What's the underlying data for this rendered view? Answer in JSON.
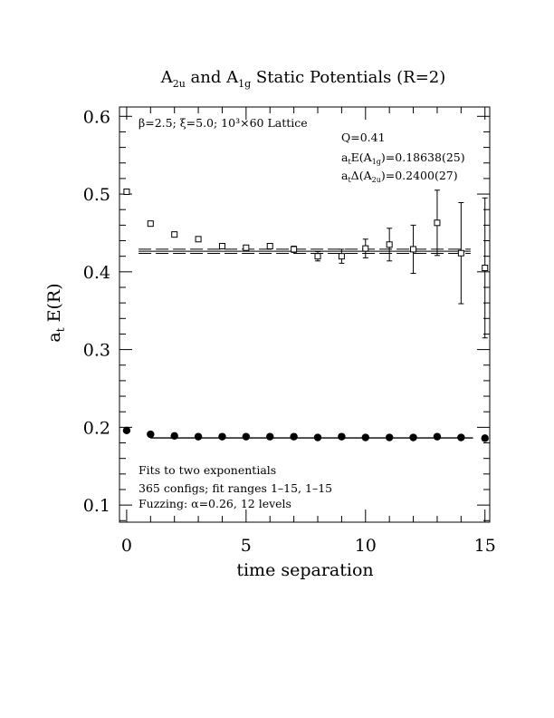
{
  "chart_data": {
    "type": "scatter",
    "title": {
      "prefix": "A",
      "sub1": "2u",
      "mid": " and A",
      "sub2": "1g",
      "suffix": " Static Potentials (R=2)"
    },
    "xlabel": "time separation",
    "ylabel": {
      "main": "a",
      "sub": "t",
      "rest": " E(R)"
    },
    "xlim": [
      -0.3,
      15.2
    ],
    "ylim": [
      0.078,
      0.612
    ],
    "xticks": [
      0,
      5,
      10,
      15
    ],
    "xtick_labels": [
      "0",
      "5",
      "10",
      "15"
    ],
    "yticks": [
      0.1,
      0.2,
      0.3,
      0.4,
      0.5,
      0.6
    ],
    "ytick_labels": [
      "0.1",
      "0.2",
      "0.3",
      "0.4",
      "0.5",
      "0.6"
    ],
    "grid": false,
    "annotations": {
      "lattice_info": "β=2.5; ξ=5.0; 10³×60 Lattice",
      "q": "Q=0.41",
      "e1g": {
        "pre": "a",
        "s1": "t",
        "mid": "E(A",
        "s2": "1g",
        "post": ")=0.18638(25)"
      },
      "d2u": {
        "pre": "a",
        "s1": "t",
        "mid": "Δ(A",
        "s2": "2u",
        "post": ")=0.2400(27)"
      },
      "fits": "Fits to two exponentials",
      "configs": "365 configs; fit ranges 1–15, 1–15",
      "fuzzing": "Fuzzing: α=0.26, 12 levels"
    },
    "series": [
      {
        "marker": "filled-circle",
        "x": [
          0,
          1,
          2,
          3,
          4,
          5,
          6,
          7,
          8,
          9,
          10,
          11,
          12,
          13,
          14,
          15
        ],
        "y": [
          0.196,
          0.191,
          0.189,
          0.188,
          0.188,
          0.188,
          0.188,
          0.188,
          0.187,
          0.188,
          0.187,
          0.187,
          0.187,
          0.188,
          0.187,
          0.186
        ],
        "err": [
          0,
          0,
          0,
          0,
          0,
          0,
          0,
          0,
          0,
          0,
          0,
          0,
          0,
          0,
          0,
          0.002
        ],
        "fit": {
          "x": [
            1,
            14.5
          ],
          "center": 0.1864,
          "band": [
            0.1862,
            0.1866
          ]
        }
      },
      {
        "marker": "open-square",
        "x": [
          0,
          1,
          2,
          3,
          4,
          5,
          6,
          7,
          8,
          9,
          10,
          11,
          12,
          13,
          14,
          15
        ],
        "y": [
          0.503,
          0.462,
          0.448,
          0.442,
          0.433,
          0.431,
          0.433,
          0.429,
          0.42,
          0.42,
          0.43,
          0.435,
          0.429,
          0.463,
          0.424,
          0.405
        ],
        "err": [
          0,
          0,
          0,
          0,
          0,
          0.002,
          0.002,
          0.004,
          0.006,
          0.009,
          0.012,
          0.021,
          0.031,
          0.042,
          0.065,
          0.09
        ],
        "fit": {
          "x": [
            0.5,
            14.4
          ],
          "center": 0.4264,
          "band": [
            0.4237,
            0.4291
          ]
        }
      }
    ]
  }
}
